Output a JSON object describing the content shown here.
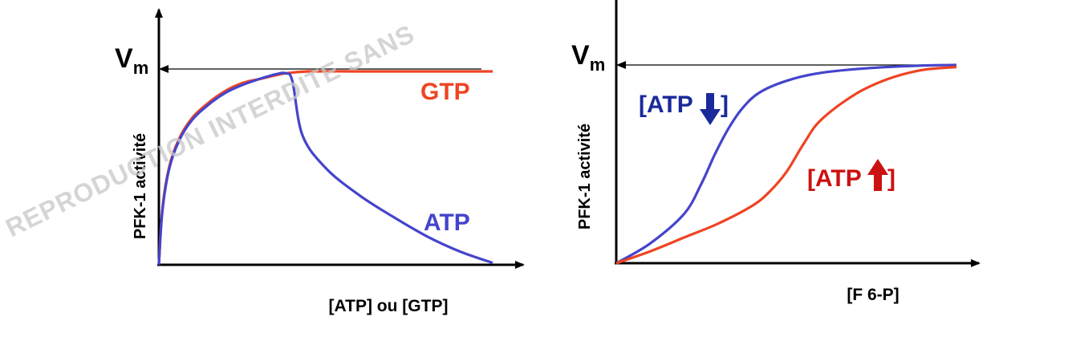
{
  "watermark": "REPRODUCTION INTERDITE SANS",
  "colors": {
    "red": "#ee4422",
    "blue": "#4444cc",
    "dark_blue": "#1a2a9a",
    "dark_red": "#cc1111",
    "axis": "#000000"
  },
  "chart_data": [
    {
      "type": "line",
      "ylabel": "PFK-1 activité",
      "xlabel": "[ATP] ou [GTP]",
      "vmax_label": "Vm",
      "vmax_main": "V",
      "vmax_sub": "m",
      "xlim": [
        0,
        10
      ],
      "ylim": [
        0,
        1.05
      ],
      "series": [
        {
          "name": "GTP",
          "color": "#ee4422",
          "x": [
            0,
            0.1,
            0.3,
            0.6,
            1.0,
            1.5,
            2.0,
            2.5,
            3.0,
            3.5,
            3.8,
            4.5,
            6,
            8,
            10
          ],
          "y": [
            0,
            0.28,
            0.5,
            0.65,
            0.76,
            0.84,
            0.9,
            0.94,
            0.96,
            0.98,
            0.99,
            1.0,
            1.0,
            1.0,
            1.0
          ]
        },
        {
          "name": "ATP",
          "color": "#4444cc",
          "x": [
            0,
            0.1,
            0.3,
            0.6,
            1.0,
            1.5,
            2.0,
            2.5,
            3.0,
            3.5,
            3.8,
            4.0,
            4.3,
            5,
            6,
            7,
            8,
            9,
            10
          ],
          "y": [
            0,
            0.27,
            0.49,
            0.64,
            0.75,
            0.83,
            0.89,
            0.93,
            0.96,
            0.985,
            0.99,
            0.95,
            0.67,
            0.5,
            0.36,
            0.25,
            0.15,
            0.07,
            0.01
          ]
        }
      ]
    },
    {
      "type": "line",
      "ylabel": "PFK-1 activité",
      "xlabel": "[F 6-P]",
      "vmax_label": "Vm",
      "vmax_main": "V",
      "vmax_sub": "m",
      "xlim": [
        0,
        10
      ],
      "ylim": [
        0,
        1.05
      ],
      "series": [
        {
          "name": "[ATP↓]",
          "label_main": "[ATP",
          "label_end": "]",
          "arrow": "down",
          "color": "#4444cc",
          "x": [
            0,
            1,
            2,
            2.5,
            2.9,
            3.3,
            3.7,
            4.2,
            5,
            6,
            7.5,
            9,
            10
          ],
          "y": [
            0,
            0.1,
            0.25,
            0.4,
            0.55,
            0.68,
            0.78,
            0.86,
            0.92,
            0.96,
            0.985,
            0.997,
            1.0
          ]
        },
        {
          "name": "[ATP↑]",
          "label_main": "[ATP",
          "label_end": "]",
          "arrow": "up",
          "color": "#ee4422",
          "x": [
            0,
            1,
            2,
            3,
            4,
            4.5,
            5,
            5.5,
            6,
            7,
            8,
            9,
            10
          ],
          "y": [
            0,
            0.06,
            0.13,
            0.2,
            0.29,
            0.36,
            0.46,
            0.6,
            0.72,
            0.85,
            0.93,
            0.975,
            0.99
          ]
        }
      ]
    }
  ]
}
